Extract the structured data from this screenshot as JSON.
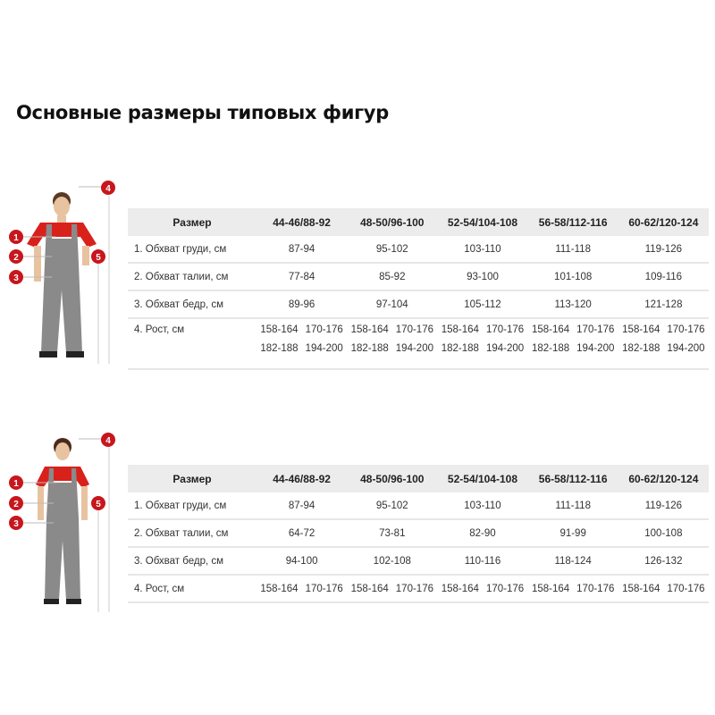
{
  "title": "Основные размеры типовых фигур",
  "marker_color": "#c8161d",
  "figures": [
    {
      "markers": [
        "1",
        "2",
        "3",
        "4",
        "5"
      ]
    },
    {
      "markers": [
        "1",
        "2",
        "3",
        "4",
        "5"
      ]
    }
  ],
  "tables": [
    {
      "header": [
        "Размер",
        "44-46/88-92",
        "48-50/96-100",
        "52-54/104-108",
        "56-58/112-116",
        "60-62/120-124"
      ],
      "rows": [
        {
          "label": "1. Обхват груди, см",
          "values": [
            "87-94",
            "95-102",
            "103-110",
            "111-118",
            "119-126"
          ]
        },
        {
          "label": "2. Обхват талии, см",
          "values": [
            "77-84",
            "85-92",
            "93-100",
            "101-108",
            "109-116"
          ]
        },
        {
          "label": "3. Обхват бедр, см",
          "values": [
            "89-96",
            "97-104",
            "105-112",
            "113-120",
            "121-128"
          ]
        }
      ],
      "height_row": {
        "label": "4. Рост, см",
        "values": [
          [
            "158-164",
            "170-176",
            "182-188",
            "194-200"
          ],
          [
            "158-164",
            "170-176",
            "182-188",
            "194-200"
          ],
          [
            "158-164",
            "170-176",
            "182-188",
            "194-200"
          ],
          [
            "158-164",
            "170-176",
            "182-188",
            "194-200"
          ],
          [
            "158-164",
            "170-176",
            "182-188",
            "194-200"
          ]
        ]
      }
    },
    {
      "header": [
        "Размер",
        "44-46/88-92",
        "48-50/96-100",
        "52-54/104-108",
        "56-58/112-116",
        "60-62/120-124"
      ],
      "rows": [
        {
          "label": "1. Обхват груди, см",
          "values": [
            "87-94",
            "95-102",
            "103-110",
            "111-118",
            "119-126"
          ]
        },
        {
          "label": "2. Обхват талии, см",
          "values": [
            "64-72",
            "73-81",
            "82-90",
            "91-99",
            "100-108"
          ]
        },
        {
          "label": "3. Обхват бедр, см",
          "values": [
            "94-100",
            "102-108",
            "110-116",
            "118-124",
            "126-132"
          ]
        }
      ],
      "height_row": {
        "label": "4. Рост, см",
        "values": [
          [
            "158-164",
            "170-176"
          ],
          [
            "158-164",
            "170-176"
          ],
          [
            "158-164",
            "170-176"
          ],
          [
            "158-164",
            "170-176"
          ],
          [
            "158-164",
            "170-176"
          ]
        ]
      }
    }
  ]
}
